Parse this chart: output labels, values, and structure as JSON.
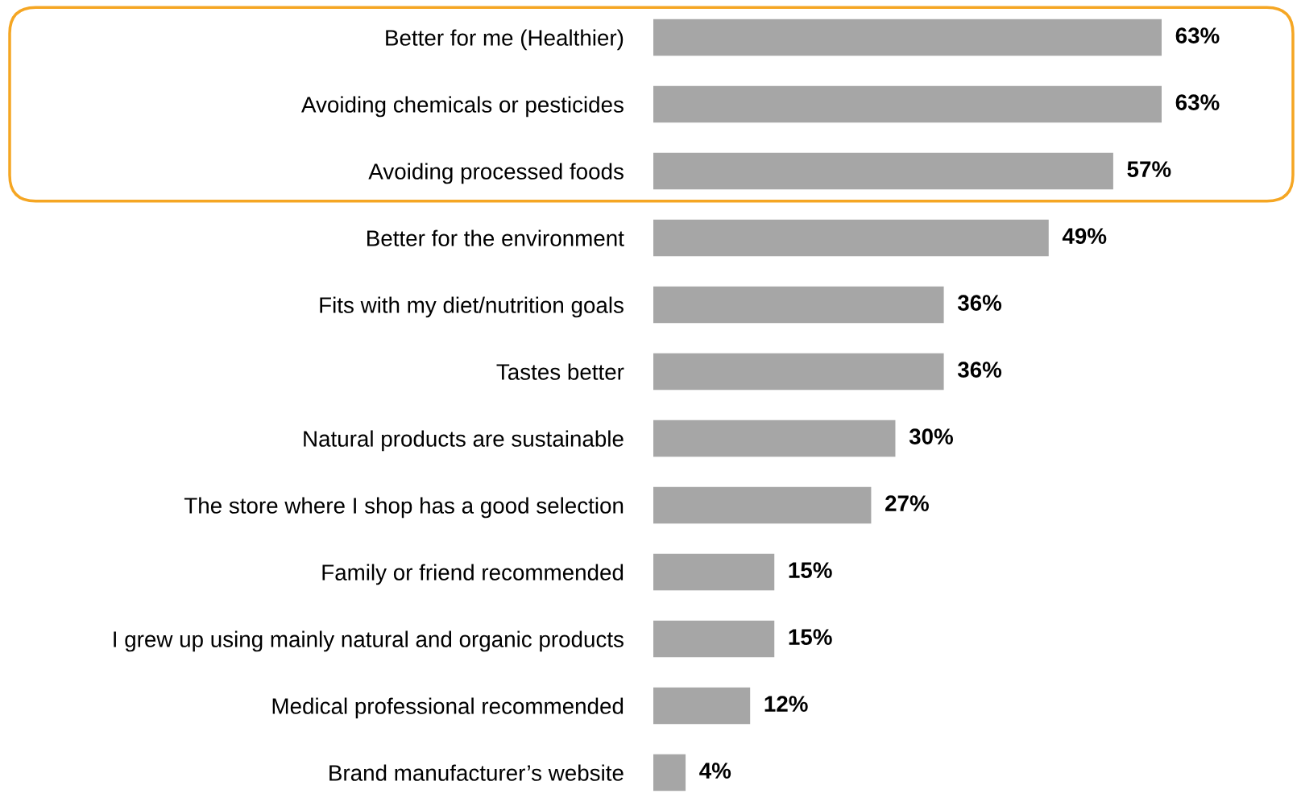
{
  "chart_data": {
    "type": "bar",
    "orientation": "horizontal",
    "categories": [
      "Better for me (Healthier)",
      "Avoiding chemicals or pesticides",
      "Avoiding processed foods",
      "Better for the environment",
      "Fits with my diet/nutrition goals",
      "Tastes better",
      "Natural products are sustainable",
      "The store where I shop has a good selection",
      "Family or friend recommended",
      "I grew up using mainly natural and organic products",
      "Medical professional recommended",
      "Brand manufacturer’s website"
    ],
    "values": [
      63,
      63,
      57,
      49,
      36,
      36,
      30,
      27,
      15,
      15,
      12,
      4
    ],
    "value_labels": [
      "63%",
      "63%",
      "57%",
      "49%",
      "36%",
      "36%",
      "30%",
      "27%",
      "15%",
      "15%",
      "12%",
      "4%"
    ],
    "color": "#a6a6a6",
    "grid": false,
    "legend": false
  }
}
